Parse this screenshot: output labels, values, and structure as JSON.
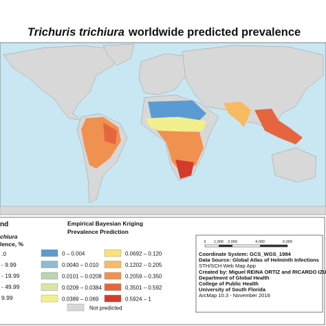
{
  "title": {
    "species": "Trichuris trichiura",
    "rest": "worldwide predicted prevalence"
  },
  "legend_left": {
    "heading": "nd",
    "line1": "chiura",
    "line2": "lence, %",
    "items": [
      ".0",
      "- 9.99",
      "- 19.99",
      "- 49.99",
      "9.99"
    ]
  },
  "legend_ebk": {
    "title1": "Empirical Bayesian Kriging",
    "title2": "Prevalence Prediction",
    "classes": [
      {
        "label": "0 – 0.004",
        "color": "#5a9bd4"
      },
      {
        "label": "0.0040 – 0.010",
        "color": "#8fbccf"
      },
      {
        "label": "0.0101 – 0.0208",
        "color": "#b9d4b0"
      },
      {
        "label": "0.0209 – 0.0384",
        "color": "#d9e6a0"
      },
      {
        "label": "0.0389 – 0.069",
        "color": "#f2f08c"
      },
      {
        "label": "0.0692 – 0.120",
        "color": "#fbe07a"
      },
      {
        "label": "0.1202 – 0.205",
        "color": "#f8bb62"
      },
      {
        "label": "0.2059 – 0.350",
        "color": "#f19150"
      },
      {
        "label": "0.3501 – 0.592",
        "color": "#e5663e"
      },
      {
        "label": "0.5924 – 1",
        "color": "#d43b2c"
      }
    ],
    "not_predicted": {
      "label": "Not predicted",
      "color": "#d8d8d8"
    }
  },
  "scale": {
    "labels": [
      "0",
      "1,000",
      "2,000",
      "4,000",
      "6,000"
    ]
  },
  "info": [
    "Coordinate System: GCS_WGS_1984",
    "Data Source: Global Atlas of Helminth Infections",
    "STH/SCH Web Map App",
    "Created by: Miguel REINA ORTIZ and RICARDO IZU",
    "Department of Global Health",
    "College of Public Health",
    "University of South Florida",
    "ArcMap 10.3 - November 2016"
  ]
}
